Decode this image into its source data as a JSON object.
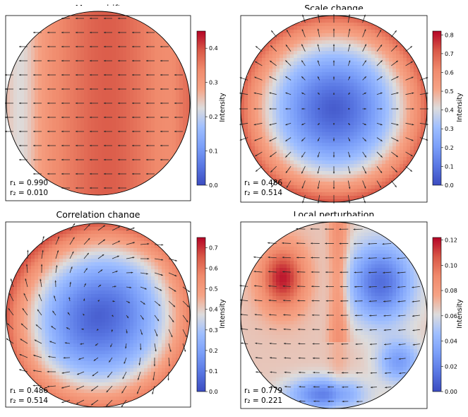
{
  "chart_data": [
    {
      "type": "heatmap",
      "title": "Mean shift",
      "colorbar_label": "Intensity",
      "colorbar_range": [
        0.0,
        0.45
      ],
      "colorbar_ticks": [
        "0.0",
        "0.1",
        "0.2",
        "0.3",
        "0.4"
      ],
      "colorbar_tick_values": [
        0.0,
        0.1,
        0.2,
        0.3,
        0.4
      ],
      "r1_label": "r₁ = 0.990",
      "r2_label": "r₂ = 0.010",
      "r1": 0.99,
      "r2": 0.01,
      "field": "mean_shift"
    },
    {
      "type": "heatmap",
      "title": "Scale change",
      "colorbar_label": "Intensity",
      "colorbar_range": [
        0.0,
        0.82
      ],
      "colorbar_ticks": [
        "0.0",
        "0.1",
        "0.2",
        "0.3",
        "0.4",
        "0.5",
        "0.6",
        "0.7",
        "0.8"
      ],
      "colorbar_tick_values": [
        0.0,
        0.1,
        0.2,
        0.3,
        0.4,
        0.5,
        0.6,
        0.7,
        0.8
      ],
      "r1_label": "r₁ = 0.486",
      "r2_label": "r₂ = 0.514",
      "r1": 0.486,
      "r2": 0.514,
      "field": "scale_change"
    },
    {
      "type": "heatmap",
      "title": "Correlation change",
      "colorbar_label": "Intensity",
      "colorbar_range": [
        0.0,
        0.75
      ],
      "colorbar_ticks": [
        "0.0",
        "0.1",
        "0.2",
        "0.3",
        "0.4",
        "0.5",
        "0.6",
        "0.7"
      ],
      "colorbar_tick_values": [
        0.0,
        0.1,
        0.2,
        0.3,
        0.4,
        0.5,
        0.6,
        0.7
      ],
      "r1_label": "r₁ = 0.486",
      "r2_label": "r₂ = 0.514",
      "r1": 0.486,
      "r2": 0.514,
      "field": "correlation_change"
    },
    {
      "type": "heatmap",
      "title": "Local perturbation",
      "colorbar_label": "Intensity",
      "colorbar_range": [
        0.0,
        0.122
      ],
      "colorbar_ticks": [
        "0.00",
        "0.02",
        "0.04",
        "0.06",
        "0.08",
        "0.10",
        "0.12"
      ],
      "colorbar_tick_values": [
        0.0,
        0.02,
        0.04,
        0.06,
        0.08,
        0.1,
        0.12
      ],
      "r1_label": "r₁ = 0.779",
      "r2_label": "r₂ = 0.221",
      "r1": 0.779,
      "r2": 0.221,
      "field": "local_perturbation"
    }
  ]
}
